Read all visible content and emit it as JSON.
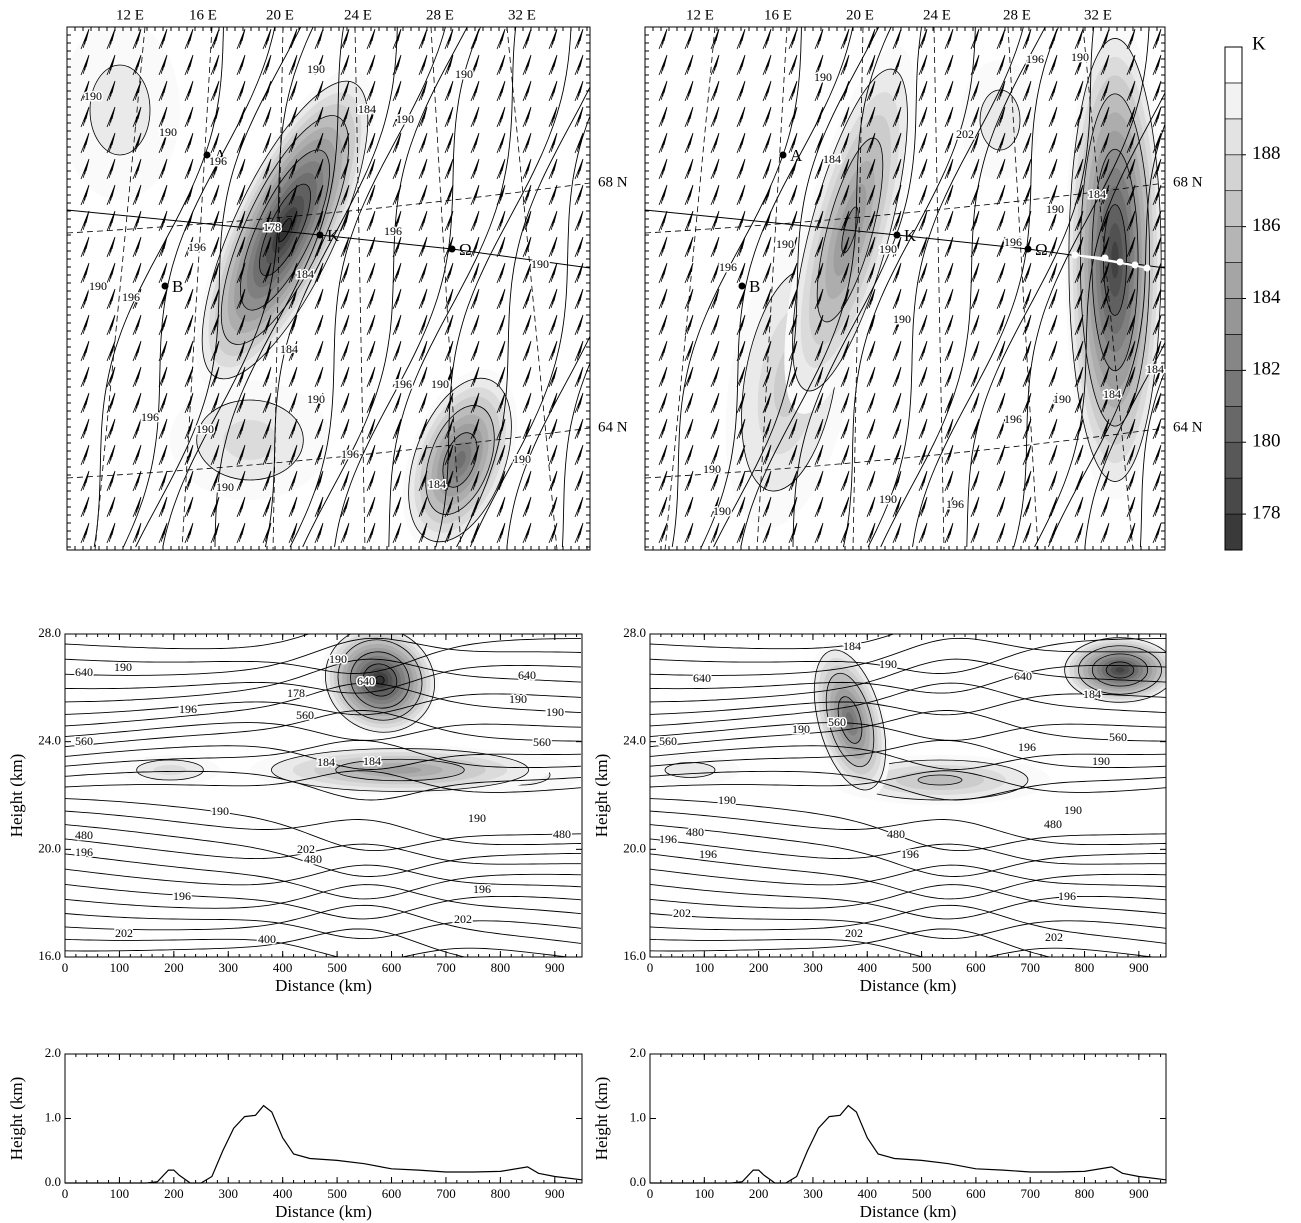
{
  "chart_data": [
    {
      "type": "map",
      "lon_labels": [
        "12 E",
        "16 E",
        "20 E",
        "24 E",
        "28 E",
        "32 E"
      ],
      "lat_labels": [
        "68 N",
        "64 N"
      ],
      "points": [
        "A",
        "B",
        "K",
        "Ω"
      ],
      "contour_labels": [
        190,
        190,
        196,
        190,
        184,
        190,
        190,
        178,
        196,
        196,
        184,
        190,
        190,
        196,
        184,
        196,
        190,
        190,
        196,
        190,
        196,
        184,
        190,
        190
      ]
    },
    {
      "type": "map",
      "lon_labels": [
        "12 E",
        "16 E",
        "20 E",
        "24 E",
        "28 E",
        "32 E"
      ],
      "lat_labels": [
        "68 N",
        "64 N"
      ],
      "points": [
        "A",
        "B",
        "K",
        "Ω"
      ],
      "contour_labels": [
        190,
        184,
        202,
        196,
        190,
        184,
        190,
        190,
        196,
        190,
        196,
        190,
        184,
        196,
        190,
        184,
        190,
        190,
        190,
        196
      ]
    },
    {
      "type": "colorbar",
      "title": "K",
      "ylim": [
        177,
        191
      ],
      "yticks": [
        178,
        180,
        182,
        184,
        186,
        188
      ]
    },
    {
      "type": "contour",
      "xlabel": "Distance (km)",
      "ylabel": "Height (km)",
      "xlim": [
        0,
        950
      ],
      "xticks": [
        0,
        100,
        200,
        300,
        400,
        500,
        600,
        700,
        800,
        900
      ],
      "ylim": [
        16,
        28
      ],
      "yticks": [
        {
          "value": 16,
          "label": "16.0"
        },
        {
          "value": 20,
          "label": "20.0"
        },
        {
          "value": 24,
          "label": "24.0"
        },
        {
          "value": 28,
          "label": "28.0"
        }
      ],
      "contour_labels": [
        640,
        190,
        196,
        178,
        560,
        190,
        640,
        640,
        190,
        190,
        560,
        560,
        184,
        184,
        190,
        190,
        480,
        196,
        202,
        480,
        480,
        196,
        196,
        202,
        202,
        400
      ]
    },
    {
      "type": "contour",
      "xlabel": "Distance (km)",
      "ylabel": "Height (km)",
      "xlim": [
        0,
        950
      ],
      "xticks": [
        0,
        100,
        200,
        300,
        400,
        500,
        600,
        700,
        800,
        900
      ],
      "ylim": [
        16,
        28
      ],
      "yticks": [
        {
          "value": 16,
          "label": "16.0"
        },
        {
          "value": 20,
          "label": "20.0"
        },
        {
          "value": 24,
          "label": "24.0"
        },
        {
          "value": 28,
          "label": "28.0"
        }
      ],
      "contour_labels": [
        640,
        184,
        190,
        560,
        190,
        640,
        184,
        560,
        196,
        190,
        560,
        190,
        196,
        480,
        196,
        480,
        196,
        480,
        190,
        196,
        202,
        202,
        202
      ]
    },
    {
      "type": "line",
      "xlabel": "Distance (km)",
      "ylabel": "Height (km)",
      "xlim": [
        0,
        950
      ],
      "xticks": [
        0,
        100,
        200,
        300,
        400,
        500,
        600,
        700,
        800,
        900
      ],
      "ylim": [
        0,
        2
      ],
      "yticks": [
        {
          "value": 0,
          "label": "0.0"
        },
        {
          "value": 1,
          "label": "1.0"
        },
        {
          "value": 2,
          "label": "2.0"
        }
      ],
      "color": "#000000",
      "x": [
        0,
        50,
        100,
        150,
        170,
        190,
        200,
        210,
        230,
        250,
        270,
        290,
        310,
        330,
        350,
        365,
        380,
        400,
        420,
        450,
        500,
        550,
        600,
        650,
        700,
        750,
        800,
        850,
        870,
        900,
        950
      ],
      "values": [
        0,
        0,
        0,
        0,
        0.02,
        0.2,
        0.2,
        0.12,
        0,
        0,
        0.1,
        0.5,
        0.85,
        1.03,
        1.05,
        1.2,
        1.1,
        0.7,
        0.45,
        0.38,
        0.35,
        0.3,
        0.22,
        0.2,
        0.17,
        0.17,
        0.18,
        0.25,
        0.15,
        0.1,
        0.05
      ]
    },
    {
      "type": "line",
      "xlabel": "Distance (km)",
      "ylabel": "Height (km)",
      "xlim": [
        0,
        950
      ],
      "xticks": [
        0,
        100,
        200,
        300,
        400,
        500,
        600,
        700,
        800,
        900
      ],
      "ylim": [
        0,
        2
      ],
      "yticks": [
        {
          "value": 0,
          "label": "0.0"
        },
        {
          "value": 1,
          "label": "1.0"
        },
        {
          "value": 2,
          "label": "2.0"
        }
      ],
      "color": "#000000",
      "x": [
        0,
        50,
        100,
        150,
        170,
        190,
        200,
        210,
        230,
        250,
        270,
        290,
        310,
        330,
        350,
        365,
        380,
        400,
        420,
        450,
        500,
        550,
        600,
        650,
        700,
        750,
        800,
        850,
        870,
        900,
        950
      ],
      "values": [
        0,
        0,
        0,
        0,
        0.02,
        0.2,
        0.2,
        0.12,
        0,
        0,
        0.1,
        0.5,
        0.85,
        1.03,
        1.05,
        1.2,
        1.1,
        0.7,
        0.45,
        0.38,
        0.35,
        0.3,
        0.22,
        0.2,
        0.17,
        0.17,
        0.18,
        0.25,
        0.15,
        0.1,
        0.05
      ]
    }
  ]
}
